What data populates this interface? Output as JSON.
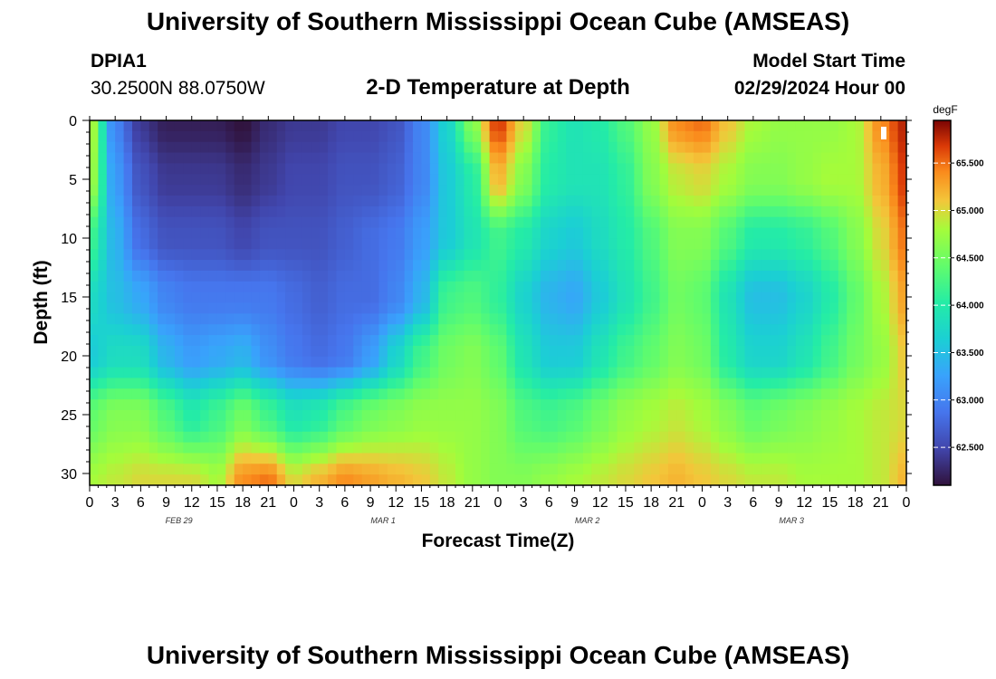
{
  "header": {
    "title": "University of Southern Mississippi Ocean Cube (AMSEAS)",
    "station_id": "DPIA1",
    "location": "30.2500N  88.0750W",
    "plot_title": "2-D Temperature at Depth",
    "model_start_label": "Model Start Time",
    "model_start_value": "02/29/2024 Hour 00"
  },
  "footer": {
    "title": "University of Southern Mississippi Ocean Cube (AMSEAS)"
  },
  "chart_data": {
    "type": "heatmap",
    "title": "2-D Temperature at Depth",
    "xlabel": "Forecast Time(Z)",
    "ylabel": "Depth (ft)",
    "x_range_hours": [
      0,
      96
    ],
    "y_range_ft": [
      0,
      31
    ],
    "y_ticks": [
      "0",
      "5",
      "10",
      "15",
      "20",
      "25",
      "30"
    ],
    "x_ticks": [
      "0",
      "3",
      "6",
      "9",
      "12",
      "15",
      "18",
      "21",
      "0",
      "3",
      "6",
      "9",
      "12",
      "15",
      "18",
      "21",
      "0",
      "3",
      "6",
      "9",
      "12",
      "15",
      "18",
      "21",
      "0",
      "3",
      "6",
      "9",
      "12",
      "15",
      "18",
      "21",
      "0"
    ],
    "date_labels": [
      "FEB 29",
      "MAR 1",
      "MAR 2",
      "MAR 3"
    ],
    "colorbar": {
      "units": "degF",
      "min": 62.1,
      "max": 65.95,
      "ticks": [
        "65.500",
        "65.000",
        "64.500",
        "64.000",
        "63.500",
        "63.000",
        "62.500"
      ]
    },
    "grid_hours": [
      0,
      3,
      6,
      9,
      12,
      15,
      18,
      21,
      24,
      27,
      30,
      33,
      36,
      39,
      42,
      45,
      48,
      51,
      54,
      57,
      60,
      63,
      66,
      69,
      72,
      75,
      78,
      81,
      84,
      87,
      90,
      93,
      96
    ],
    "grid_depths_ft": [
      0,
      5,
      10,
      15,
      20,
      25,
      31
    ],
    "temperature_degF": [
      [
        64.9,
        63.0,
        62.4,
        62.2,
        62.2,
        62.2,
        62.1,
        62.3,
        62.4,
        62.4,
        62.5,
        62.5,
        62.6,
        63.0,
        63.7,
        64.6,
        65.7,
        65.0,
        64.1,
        63.9,
        64.0,
        64.3,
        64.7,
        65.4,
        65.5,
        65.1,
        64.8,
        64.7,
        64.7,
        64.7,
        64.8,
        65.4,
        65.8
      ],
      [
        64.8,
        63.2,
        62.6,
        62.4,
        62.4,
        62.4,
        62.3,
        62.4,
        62.5,
        62.5,
        62.6,
        62.6,
        62.7,
        63.0,
        63.6,
        64.0,
        65.2,
        64.6,
        64.0,
        63.9,
        63.9,
        64.1,
        64.6,
        64.9,
        65.0,
        64.8,
        64.6,
        64.6,
        64.7,
        64.8,
        64.8,
        65.2,
        65.7
      ],
      [
        64.2,
        63.4,
        62.8,
        62.6,
        62.6,
        62.6,
        62.5,
        62.6,
        62.6,
        62.6,
        62.7,
        62.8,
        62.9,
        63.2,
        63.6,
        63.9,
        64.2,
        64.0,
        63.7,
        63.6,
        63.8,
        64.0,
        64.3,
        64.6,
        64.6,
        64.3,
        64.0,
        64.0,
        64.1,
        64.3,
        64.6,
        65.0,
        65.5
      ],
      [
        63.8,
        63.5,
        63.3,
        63.0,
        62.9,
        62.9,
        62.9,
        62.9,
        62.8,
        62.7,
        62.8,
        62.8,
        63.0,
        63.4,
        64.2,
        64.3,
        64.1,
        63.7,
        63.4,
        63.3,
        63.6,
        63.9,
        64.2,
        64.5,
        64.4,
        63.9,
        63.5,
        63.5,
        63.7,
        64.0,
        64.4,
        64.8,
        65.3
      ],
      [
        63.6,
        63.8,
        63.8,
        63.4,
        63.2,
        63.3,
        63.4,
        63.1,
        62.9,
        62.8,
        62.9,
        63.2,
        63.7,
        64.2,
        64.5,
        64.6,
        64.4,
        63.9,
        63.6,
        63.6,
        63.9,
        64.2,
        64.4,
        64.6,
        64.5,
        64.0,
        63.7,
        63.7,
        63.9,
        64.2,
        64.5,
        64.7,
        65.1
      ],
      [
        64.4,
        64.6,
        64.6,
        64.3,
        64.0,
        64.2,
        64.5,
        64.2,
        63.9,
        64.0,
        64.3,
        64.5,
        64.6,
        64.7,
        64.7,
        64.7,
        64.6,
        64.3,
        64.2,
        64.3,
        64.5,
        64.7,
        64.8,
        64.9,
        64.8,
        64.6,
        64.4,
        64.5,
        64.6,
        64.7,
        64.8,
        64.9,
        65.0
      ],
      [
        64.8,
        64.9,
        65.0,
        65.0,
        65.0,
        64.8,
        65.4,
        65.5,
        65.0,
        65.2,
        65.4,
        65.3,
        65.2,
        65.1,
        64.9,
        64.7,
        64.6,
        64.6,
        64.7,
        64.8,
        64.9,
        65.0,
        65.1,
        65.2,
        65.1,
        65.0,
        64.9,
        64.9,
        64.8,
        64.8,
        64.8,
        64.9,
        65.2
      ]
    ]
  }
}
